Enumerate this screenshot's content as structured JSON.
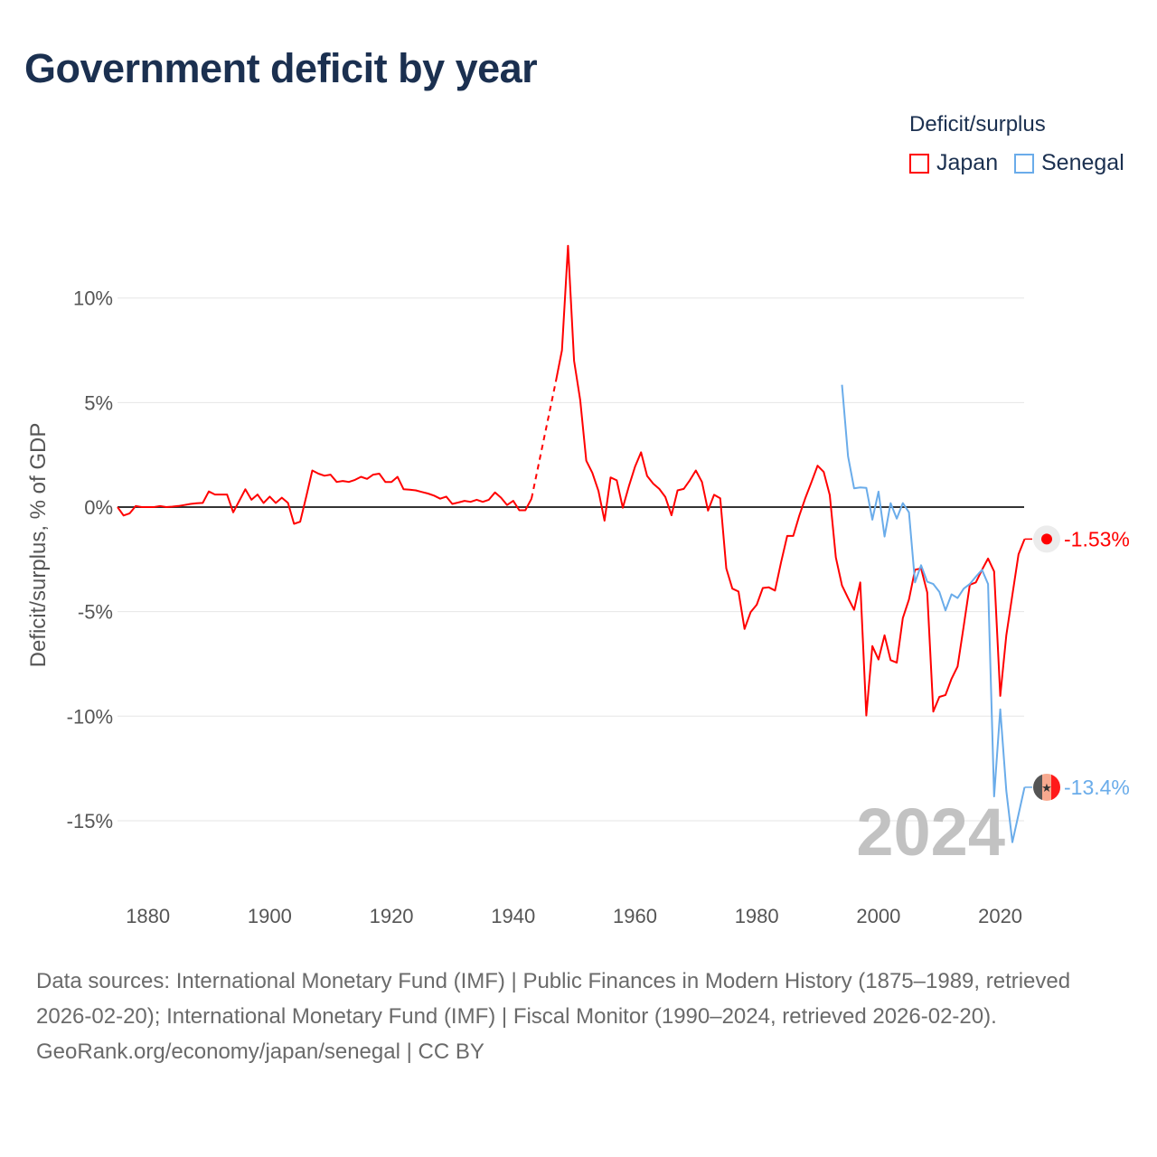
{
  "title": "Government deficit by year",
  "legend": {
    "title": "Deficit/surplus",
    "items": [
      {
        "name": "Japan",
        "color": "#ff0000"
      },
      {
        "name": "Senegal",
        "color": "#6aacea"
      }
    ]
  },
  "footer": {
    "sources": "Data sources: International Monetary Fund (IMF) | Public Finances in Modern History (1875–1989, retrieved 2026-02-20); International Monetary Fund (IMF) | Fiscal Monitor (1990–2024, retrieved 2026-02-20).",
    "credit": "GeoRank.org/economy/japan/senegal | CC BY"
  },
  "chart_data": {
    "type": "line",
    "title": "Government deficit by year",
    "xlabel": "",
    "ylabel": "Deficit/surplus, % of GDP",
    "xlim": [
      1875,
      2024
    ],
    "ylim": [
      -16.5,
      12.8
    ],
    "x_ticks": [
      {
        "value": 1880,
        "label": "1880"
      },
      {
        "value": 1900,
        "label": "1900"
      },
      {
        "value": 1920,
        "label": "1920"
      },
      {
        "value": 1940,
        "label": "1940"
      },
      {
        "value": 1960,
        "label": "1960"
      },
      {
        "value": 1980,
        "label": "1980"
      },
      {
        "value": 2000,
        "label": "2000"
      },
      {
        "value": 2020,
        "label": "2020"
      }
    ],
    "y_ticks": [
      {
        "value": 10,
        "label": "10%"
      },
      {
        "value": 5,
        "label": "5%"
      },
      {
        "value": 0,
        "label": "0%"
      },
      {
        "value": -5,
        "label": "-5%"
      },
      {
        "value": -10,
        "label": "-10%"
      },
      {
        "value": -15,
        "label": "-15%"
      }
    ],
    "grid": true,
    "year_annotation": "2024",
    "legend_position": "top-right",
    "series": [
      {
        "name": "Japan",
        "color": "#ff0000",
        "start_year": 1875,
        "end_label": "-1.53%",
        "values": [
          0,
          -0.4,
          -0.3,
          0.05,
          0,
          0,
          0,
          0.05,
          0,
          0.02,
          0.05,
          0.1,
          0.15,
          0.18,
          0.2,
          0.75,
          0.6,
          0.6,
          0.6,
          -0.25,
          0.3,
          0.85,
          0.35,
          0.6,
          0.2,
          0.5,
          0.2,
          0.45,
          0.2,
          -0.8,
          -0.7,
          0.5,
          1.75,
          1.6,
          1.5,
          1.55,
          1.2,
          1.25,
          1.2,
          1.3,
          1.45,
          1.35,
          1.55,
          1.6,
          1.2,
          1.2,
          1.45,
          0.85,
          0.83,
          0.8,
          0.72,
          0.65,
          0.55,
          0.4,
          0.5,
          0.15,
          0.22,
          0.3,
          0.25,
          0.35,
          0.25,
          0.35,
          0.7,
          0.45,
          0.1,
          0.3,
          -0.15,
          -0.15,
          0.4,
          null,
          null,
          null,
          6.0,
          7.5,
          12.5,
          7.0,
          5.12,
          2.22,
          1.64,
          0.77,
          -0.65,
          1.42,
          1.28,
          -0.03,
          0.99,
          1.93,
          2.62,
          1.49,
          1.12,
          0.87,
          0.48,
          -0.39,
          0.8,
          0.87,
          1.28,
          1.75,
          1.2,
          -0.17,
          0.59,
          0.42,
          -2.93,
          -3.9,
          -4.04,
          -5.83,
          -5.03,
          -4.67,
          -3.87,
          -3.84,
          -3.99,
          -2.64,
          -1.38,
          -1.38,
          -0.4,
          0.45,
          1.2,
          1.98,
          1.68,
          0.57,
          -2.41,
          -3.75,
          -4.35,
          -4.91,
          -3.6,
          -9.97,
          -6.65,
          -7.29,
          -6.13,
          -7.32,
          -7.44,
          -5.31,
          -4.42,
          -3.0,
          -2.93,
          -4.08,
          -9.78,
          -9.08,
          -8.99,
          -8.21,
          -7.62,
          -5.68,
          -3.72,
          -3.6,
          -3.0,
          -2.46,
          -3.08,
          -9.03,
          -6.13,
          -4.2,
          -2.26,
          -1.53
        ]
      },
      {
        "name": "Senegal",
        "color": "#6aacea",
        "start_year": 1994,
        "end_label": "-13.4%",
        "values": [
          5.85,
          2.43,
          0.9,
          0.94,
          0.92,
          -0.6,
          0.74,
          -1.41,
          0.19,
          -0.55,
          0.19,
          -0.25,
          -3.6,
          -2.78,
          -3.57,
          -3.68,
          -4.05,
          -4.94,
          -4.17,
          -4.35,
          -3.9,
          -3.68,
          -3.33,
          -3.0,
          -3.68,
          -13.84,
          -9.67,
          -13.57,
          -16.03,
          -14.7,
          -13.4
        ]
      }
    ]
  }
}
